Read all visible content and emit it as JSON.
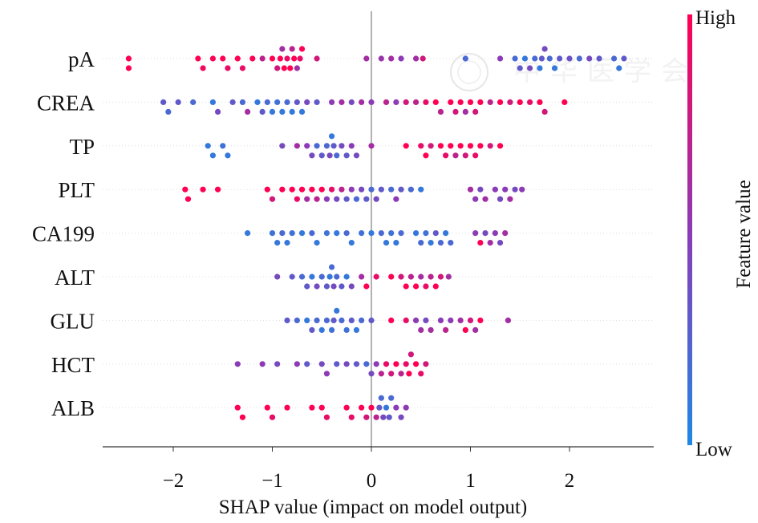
{
  "chart_data": {
    "type": "scatter",
    "subtype": "shap-beeswarm",
    "xlabel": "SHAP value (impact on model output)",
    "xlim": [
      -2.7,
      2.85
    ],
    "xticks": [
      -2,
      -1,
      0,
      1,
      2
    ],
    "xtick_labels": [
      "−2",
      "−1",
      "0",
      "1",
      "2"
    ],
    "colorbar": {
      "label": "Feature value",
      "high": "High",
      "low": "Low",
      "low_color": "#1E88E5",
      "high_color": "#FF0052"
    },
    "watermark": "中华医学会",
    "features": [
      {
        "name": "pA",
        "points": [
          [
            -2.45,
            1
          ],
          [
            -2.45,
            1
          ],
          [
            -1.75,
            1
          ],
          [
            -1.7,
            0.95
          ],
          [
            -1.6,
            1
          ],
          [
            -1.5,
            1
          ],
          [
            -1.45,
            0.9
          ],
          [
            -1.35,
            1
          ],
          [
            -1.3,
            0.9
          ],
          [
            -1.2,
            1
          ],
          [
            -1.1,
            0.7
          ],
          [
            -1.0,
            1
          ],
          [
            -0.95,
            0.8
          ],
          [
            -0.92,
            1
          ],
          [
            -0.9,
            0.6
          ],
          [
            -0.88,
            1
          ],
          [
            -0.85,
            0.9
          ],
          [
            -0.82,
            1
          ],
          [
            -0.8,
            0.7
          ],
          [
            -0.78,
            1
          ],
          [
            -0.75,
            0.6
          ],
          [
            -0.72,
            0.9
          ],
          [
            -0.7,
            1
          ],
          [
            -0.55,
            0.8
          ],
          [
            -0.05,
            0.6
          ],
          [
            0.1,
            0.55
          ],
          [
            0.2,
            0.6
          ],
          [
            0.3,
            0.5
          ],
          [
            0.45,
            0.6
          ],
          [
            0.52,
            0.8
          ],
          [
            0.95,
            0.2
          ],
          [
            1.3,
            0.5
          ],
          [
            1.45,
            0.2
          ],
          [
            1.5,
            0.3
          ],
          [
            1.55,
            0.1
          ],
          [
            1.6,
            0.4
          ],
          [
            1.65,
            0.2
          ],
          [
            1.7,
            0.1
          ],
          [
            1.72,
            0.3
          ],
          [
            1.75,
            0.4
          ],
          [
            1.8,
            0.2
          ],
          [
            1.85,
            0.1
          ],
          [
            1.9,
            0.3
          ],
          [
            2.0,
            0.35
          ],
          [
            2.1,
            0.2
          ],
          [
            2.2,
            0.4
          ],
          [
            2.3,
            0.3
          ],
          [
            2.45,
            0.2
          ],
          [
            2.5,
            0.1
          ],
          [
            2.55,
            0.3
          ]
        ]
      },
      {
        "name": "CREA",
        "points": [
          [
            -2.1,
            0.3
          ],
          [
            -2.05,
            0.2
          ],
          [
            -1.95,
            0.3
          ],
          [
            -1.8,
            0.2
          ],
          [
            -1.6,
            0.1
          ],
          [
            -1.55,
            0.4
          ],
          [
            -1.4,
            0.3
          ],
          [
            -1.3,
            0.2
          ],
          [
            -1.25,
            0.6
          ],
          [
            -1.15,
            0.1
          ],
          [
            -1.1,
            0.3
          ],
          [
            -1.05,
            0.2
          ],
          [
            -1.0,
            0.1
          ],
          [
            -0.95,
            0.15
          ],
          [
            -0.9,
            0.1
          ],
          [
            -0.85,
            0.2
          ],
          [
            -0.8,
            0.1
          ],
          [
            -0.75,
            0.3
          ],
          [
            -0.7,
            0.1
          ],
          [
            -0.65,
            0.4
          ],
          [
            -0.55,
            0.3
          ],
          [
            -0.4,
            0.5
          ],
          [
            -0.3,
            0.6
          ],
          [
            -0.2,
            0.4
          ],
          [
            -0.1,
            0.6
          ],
          [
            0.0,
            0.5
          ],
          [
            0.15,
            0.7
          ],
          [
            0.25,
            0.5
          ],
          [
            0.35,
            0.8
          ],
          [
            0.45,
            0.7
          ],
          [
            0.55,
            0.9
          ],
          [
            0.65,
            1
          ],
          [
            0.7,
            0.7
          ],
          [
            0.8,
            1
          ],
          [
            0.85,
            0.8
          ],
          [
            0.9,
            1
          ],
          [
            0.95,
            0.6
          ],
          [
            1.0,
            1
          ],
          [
            1.05,
            0.8
          ],
          [
            1.1,
            1
          ],
          [
            1.2,
            0.7
          ],
          [
            1.3,
            1
          ],
          [
            1.4,
            0.8
          ],
          [
            1.5,
            1
          ],
          [
            1.6,
            0.9
          ],
          [
            1.7,
            1
          ],
          [
            1.75,
            0.8
          ],
          [
            1.95,
            1
          ]
        ]
      },
      {
        "name": "TP",
        "points": [
          [
            -1.65,
            0.1
          ],
          [
            -1.6,
            0.1
          ],
          [
            -1.5,
            0.15
          ],
          [
            -1.45,
            0.1
          ],
          [
            -0.9,
            0.4
          ],
          [
            -0.75,
            0.6
          ],
          [
            -0.65,
            0.5
          ],
          [
            -0.6,
            0.4
          ],
          [
            -0.55,
            0.2
          ],
          [
            -0.5,
            0.3
          ],
          [
            -0.45,
            0.2
          ],
          [
            -0.42,
            0.4
          ],
          [
            -0.4,
            0.1
          ],
          [
            -0.38,
            0.3
          ],
          [
            -0.35,
            0.2
          ],
          [
            -0.3,
            0.4
          ],
          [
            -0.25,
            0.3
          ],
          [
            -0.2,
            0.5
          ],
          [
            -0.15,
            0.4
          ],
          [
            0.0,
            0.6
          ],
          [
            0.35,
            1
          ],
          [
            0.5,
            0.9
          ],
          [
            0.55,
            1
          ],
          [
            0.6,
            0.8
          ],
          [
            0.7,
            1
          ],
          [
            0.75,
            0.9
          ],
          [
            0.8,
            1
          ],
          [
            0.85,
            0.7
          ],
          [
            0.9,
            1
          ],
          [
            0.95,
            0.8
          ],
          [
            1.0,
            1
          ],
          [
            1.05,
            0.9
          ],
          [
            1.1,
            1
          ],
          [
            1.2,
            0.8
          ],
          [
            1.3,
            1
          ]
        ]
      },
      {
        "name": "PLT",
        "points": [
          [
            -1.88,
            1
          ],
          [
            -1.85,
            1
          ],
          [
            -1.7,
            1
          ],
          [
            -1.55,
            1
          ],
          [
            -1.05,
            1
          ],
          [
            -1.0,
            0.8
          ],
          [
            -0.9,
            1
          ],
          [
            -0.8,
            1
          ],
          [
            -0.75,
            0.9
          ],
          [
            -0.7,
            1
          ],
          [
            -0.65,
            0.6
          ],
          [
            -0.6,
            1
          ],
          [
            -0.55,
            0.7
          ],
          [
            -0.5,
            1
          ],
          [
            -0.45,
            0.5
          ],
          [
            -0.4,
            0.9
          ],
          [
            -0.35,
            0.4
          ],
          [
            -0.3,
            0.7
          ],
          [
            -0.25,
            0.3
          ],
          [
            -0.2,
            0.5
          ],
          [
            -0.15,
            0.2
          ],
          [
            -0.1,
            0.4
          ],
          [
            -0.05,
            0.3
          ],
          [
            0.0,
            0.2
          ],
          [
            0.05,
            0.4
          ],
          [
            0.1,
            0.3
          ],
          [
            0.2,
            0.2
          ],
          [
            0.25,
            0.5
          ],
          [
            0.3,
            0.3
          ],
          [
            0.4,
            0.2
          ],
          [
            0.5,
            0.1
          ],
          [
            1.0,
            0.6
          ],
          [
            1.05,
            0.5
          ],
          [
            1.1,
            0.4
          ],
          [
            1.15,
            0.6
          ],
          [
            1.25,
            0.5
          ],
          [
            1.3,
            0.4
          ],
          [
            1.35,
            0.5
          ],
          [
            1.4,
            0.6
          ],
          [
            1.45,
            0.4
          ],
          [
            1.52,
            0.5
          ]
        ]
      },
      {
        "name": "CA199",
        "points": [
          [
            -1.25,
            0.1
          ],
          [
            -1.0,
            0.15
          ],
          [
            -0.95,
            0.1
          ],
          [
            -0.9,
            0.2
          ],
          [
            -0.85,
            0.1
          ],
          [
            -0.8,
            0.15
          ],
          [
            -0.7,
            0.1
          ],
          [
            -0.6,
            0.2
          ],
          [
            -0.55,
            0.1
          ],
          [
            -0.45,
            0.15
          ],
          [
            -0.35,
            0.1
          ],
          [
            -0.25,
            0.2
          ],
          [
            -0.2,
            0.1
          ],
          [
            -0.1,
            0.15
          ],
          [
            0.0,
            0.1
          ],
          [
            0.1,
            0.2
          ],
          [
            0.15,
            0.1
          ],
          [
            0.2,
            0.15
          ],
          [
            0.25,
            0.1
          ],
          [
            0.3,
            0.2
          ],
          [
            0.45,
            0.1
          ],
          [
            0.5,
            0.2
          ],
          [
            0.55,
            0.15
          ],
          [
            0.6,
            0.1
          ],
          [
            0.65,
            0.3
          ],
          [
            0.7,
            0.2
          ],
          [
            0.75,
            0.1
          ],
          [
            0.8,
            0.2
          ],
          [
            1.05,
            0.5
          ],
          [
            1.1,
            1
          ],
          [
            1.15,
            0.4
          ],
          [
            1.2,
            0.6
          ],
          [
            1.25,
            0.5
          ],
          [
            1.3,
            0.4
          ],
          [
            1.35,
            0.6
          ]
        ]
      },
      {
        "name": "ALT",
        "points": [
          [
            -0.95,
            0.4
          ],
          [
            -0.8,
            0.3
          ],
          [
            -0.7,
            0.2
          ],
          [
            -0.65,
            0.3
          ],
          [
            -0.6,
            0.1
          ],
          [
            -0.55,
            0.4
          ],
          [
            -0.5,
            0.2
          ],
          [
            -0.45,
            0.3
          ],
          [
            -0.42,
            0.1
          ],
          [
            -0.4,
            0.2
          ],
          [
            -0.38,
            0.4
          ],
          [
            -0.35,
            0.2
          ],
          [
            -0.3,
            0.3
          ],
          [
            -0.25,
            0.1
          ],
          [
            -0.2,
            0.4
          ],
          [
            -0.1,
            0.6
          ],
          [
            -0.05,
            1
          ],
          [
            0.05,
            0.9
          ],
          [
            0.2,
            1
          ],
          [
            0.3,
            0.8
          ],
          [
            0.35,
            1
          ],
          [
            0.4,
            0.7
          ],
          [
            0.45,
            1
          ],
          [
            0.5,
            0.6
          ],
          [
            0.55,
            0.9
          ],
          [
            0.6,
            0.7
          ],
          [
            0.65,
            1
          ],
          [
            0.7,
            0.8
          ],
          [
            0.78,
            0.6
          ]
        ]
      },
      {
        "name": "GLU",
        "points": [
          [
            -0.85,
            0.3
          ],
          [
            -0.75,
            0.2
          ],
          [
            -0.65,
            0.1
          ],
          [
            -0.6,
            0.3
          ],
          [
            -0.55,
            0.2
          ],
          [
            -0.5,
            0.1
          ],
          [
            -0.45,
            0.2
          ],
          [
            -0.4,
            0.15
          ],
          [
            -0.38,
            0.3
          ],
          [
            -0.35,
            0.1
          ],
          [
            -0.3,
            0.2
          ],
          [
            -0.25,
            0.15
          ],
          [
            -0.2,
            0.3
          ],
          [
            -0.15,
            0.1
          ],
          [
            -0.1,
            0.2
          ],
          [
            0.0,
            0.3
          ],
          [
            0.2,
            1
          ],
          [
            0.35,
            0.9
          ],
          [
            0.45,
            0.5
          ],
          [
            0.5,
            0.6
          ],
          [
            0.55,
            0.4
          ],
          [
            0.6,
            0.6
          ],
          [
            0.7,
            0.5
          ],
          [
            0.75,
            0.7
          ],
          [
            0.8,
            0.5
          ],
          [
            0.9,
            0.6
          ],
          [
            0.95,
            1
          ],
          [
            1.0,
            0.8
          ],
          [
            1.05,
            0.6
          ],
          [
            1.1,
            1
          ],
          [
            1.38,
            0.6
          ]
        ]
      },
      {
        "name": "HCT",
        "points": [
          [
            -1.35,
            0.5
          ],
          [
            -1.1,
            0.5
          ],
          [
            -0.95,
            0.4
          ],
          [
            -0.75,
            0.5
          ],
          [
            -0.65,
            0.3
          ],
          [
            -0.5,
            0.4
          ],
          [
            -0.45,
            0.5
          ],
          [
            -0.35,
            0.3
          ],
          [
            -0.25,
            0.4
          ],
          [
            -0.15,
            0.3
          ],
          [
            -0.05,
            0.2
          ],
          [
            0.0,
            0.4
          ],
          [
            0.05,
            0.5
          ],
          [
            0.1,
            0.7
          ],
          [
            0.15,
            0.9
          ],
          [
            0.2,
            0.8
          ],
          [
            0.25,
            1
          ],
          [
            0.3,
            0.7
          ],
          [
            0.35,
            0.9
          ],
          [
            0.38,
            1
          ],
          [
            0.4,
            0.8
          ],
          [
            0.45,
            1
          ],
          [
            0.5,
            0.9
          ],
          [
            0.55,
            0.8
          ]
        ]
      },
      {
        "name": "ALB",
        "points": [
          [
            -1.35,
            1
          ],
          [
            -1.3,
            1
          ],
          [
            -1.05,
            1
          ],
          [
            -1.0,
            0.9
          ],
          [
            -0.85,
            1
          ],
          [
            -0.6,
            1
          ],
          [
            -0.5,
            1
          ],
          [
            -0.45,
            0.9
          ],
          [
            -0.25,
            1
          ],
          [
            -0.2,
            0.9
          ],
          [
            -0.1,
            1
          ],
          [
            -0.05,
            0.8
          ],
          [
            0.0,
            1
          ],
          [
            0.05,
            0.7
          ],
          [
            0.08,
            0.3
          ],
          [
            0.1,
            0.2
          ],
          [
            0.12,
            0.4
          ],
          [
            0.15,
            0.1
          ],
          [
            0.18,
            0.3
          ],
          [
            0.2,
            0.2
          ],
          [
            0.25,
            0.5
          ],
          [
            0.3,
            0.4
          ],
          [
            0.35,
            0.5
          ]
        ]
      }
    ]
  }
}
